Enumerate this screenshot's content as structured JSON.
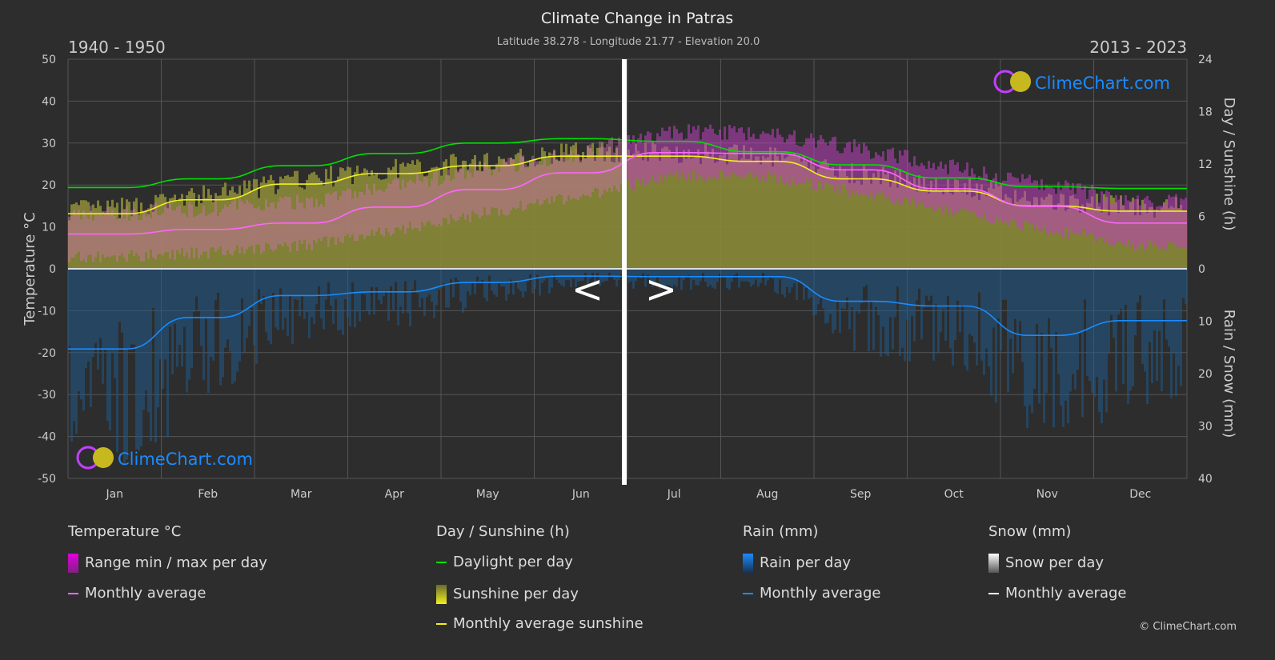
{
  "title": "Climate Change in Patras",
  "subtitle": "Latitude 38.278 - Longitude 21.77 - Elevation 20.0",
  "period_left": "1940 - 1950",
  "period_right": "2013 - 2023",
  "nav": {
    "prev": "<",
    "next": ">"
  },
  "logo_text": "ClimeChart.com",
  "copyright": "© ClimeChart.com",
  "colors": {
    "background": "#2d2d2d",
    "temperature_avg": "#ff66ff",
    "temperature_range": "#e000e0",
    "daylight": "#00e000",
    "sunshine_avg": "#f0f020",
    "sunshine_fill": "#8a8a38",
    "rain": "#1a8cff",
    "snow": "#ffffff",
    "logo": "#1a8cff"
  },
  "legend": {
    "temperature": {
      "header": "Temperature °C",
      "items": [
        "Range min / max per day",
        "Monthly average"
      ]
    },
    "sunshine": {
      "header": "Day / Sunshine (h)",
      "items": [
        "Daylight per day",
        "Sunshine per day",
        "Monthly average sunshine"
      ]
    },
    "rain": {
      "header": "Rain (mm)",
      "items": [
        "Rain per day",
        "Monthly average"
      ]
    },
    "snow": {
      "header": "Snow (mm)",
      "items": [
        "Snow per day",
        "Monthly average"
      ]
    }
  },
  "chart_data": {
    "type": "line",
    "categories": [
      "Jan",
      "Feb",
      "Mar",
      "Apr",
      "May",
      "Jun",
      "Jul",
      "Aug",
      "Sep",
      "Oct",
      "Nov",
      "Dec"
    ],
    "y_left": {
      "label": "Temperature °C",
      "range": [
        -50,
        50
      ],
      "ticks": [
        "50",
        "40",
        "30",
        "20",
        "10",
        "0",
        "-10",
        "-20",
        "-30",
        "-40",
        "-50"
      ]
    },
    "y_right_top": {
      "label": "Day / Sunshine (h)",
      "range": [
        0,
        24
      ],
      "ticks": [
        "24",
        "18",
        "12",
        "6",
        "0"
      ]
    },
    "y_right_bottom": {
      "label": "Rain / Snow (mm)",
      "range": [
        0,
        40
      ],
      "ticks": [
        "0",
        "10",
        "20",
        "30",
        "40"
      ]
    },
    "grid": true,
    "note_split": "Jan–Jun show 1940 - 1950, Jul–Dec show 2013 - 2023",
    "series": [
      {
        "name": "Monthly average",
        "axis": "temperature",
        "values": [
          8.3,
          9.4,
          10.9,
          14.7,
          18.9,
          22.9,
          27.7,
          27.5,
          23.6,
          19.1,
          14.9,
          10.9
        ]
      },
      {
        "name": "Daylight per day",
        "axis": "sunshine",
        "values": [
          9.3,
          10.3,
          11.8,
          13.2,
          14.4,
          14.9,
          14.6,
          13.4,
          11.9,
          10.4,
          9.4,
          9.2
        ]
      },
      {
        "name": "Monthly average sunshine",
        "axis": "sunshine",
        "values": [
          6.3,
          7.9,
          9.7,
          10.9,
          11.8,
          12.9,
          12.9,
          12.3,
          10.3,
          8.9,
          7.2,
          6.6
        ]
      },
      {
        "name": "Monthly average",
        "axis": "rain",
        "values": [
          15.3,
          9.3,
          5.1,
          4.4,
          2.6,
          1.4,
          1.5,
          1.5,
          6.2,
          7.1,
          12.7,
          9.9
        ]
      }
    ]
  }
}
